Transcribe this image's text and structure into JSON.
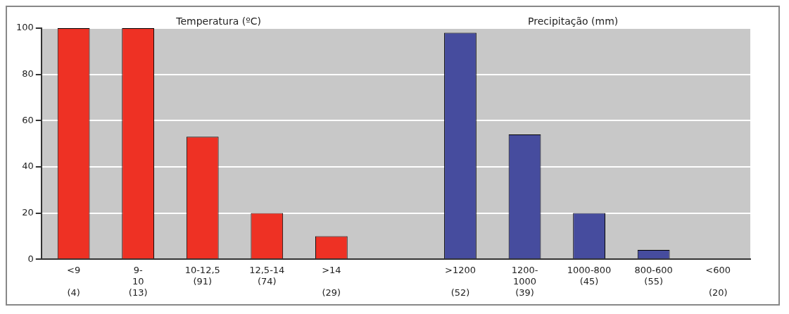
{
  "chart_data": {
    "type": "bar",
    "categories": [
      "<9\n\n(4)",
      "9-\n10\n(13)",
      "10-12,5\n(91)",
      "12,5-14\n(74)",
      ">14\n\n(29)",
      null,
      ">1200\n\n(52)",
      "1200-\n1000\n(39)",
      "1000-800\n(45)",
      "800-600\n(55)",
      "<600\n\n(20)"
    ],
    "values": [
      100,
      100,
      53,
      20,
      10,
      null,
      98,
      54,
      20,
      4,
      0
    ],
    "colors": [
      "#ee3124",
      "#ee3124",
      "#ee3124",
      "#ee3124",
      "#ee3124",
      "#ee3124",
      "#464c9e",
      "#464c9e",
      "#464c9e",
      "#464c9e",
      "#464c9e"
    ],
    "ylim": [
      0,
      100
    ],
    "yticks": [
      0,
      20,
      40,
      60,
      80,
      100
    ],
    "grid": "y",
    "annotations": [
      "Temperatura (ºC)",
      "Precipitação (mm)"
    ]
  }
}
